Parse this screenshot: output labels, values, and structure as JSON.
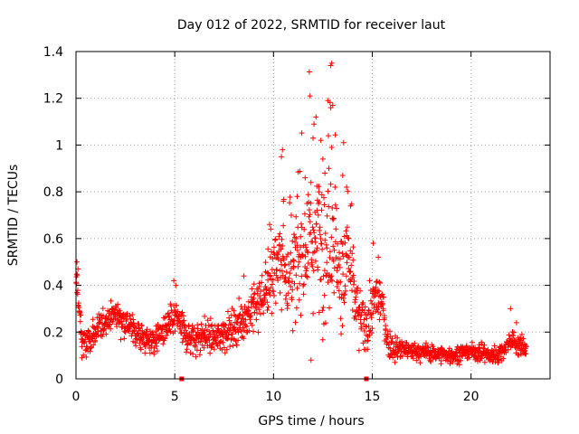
{
  "chart_data": {
    "type": "scatter",
    "title": "Day 012 of 2022, SRMTID for receiver laut",
    "xlabel": "GPS time / hours",
    "ylabel": "SRMTID / TECUs",
    "xlim": [
      0,
      24
    ],
    "ylim": [
      0,
      1.4
    ],
    "xticks": [
      0,
      5,
      10,
      15,
      20
    ],
    "xtick_labels": [
      "0",
      "5",
      "10",
      "15",
      "20"
    ],
    "yticks": [
      0,
      0.2,
      0.4,
      0.6,
      0.8,
      1.0,
      1.2,
      1.4
    ],
    "ytick_labels": [
      "0",
      "0.2",
      "0.4",
      "0.6",
      "0.8",
      "1",
      "1.2",
      "1.4"
    ],
    "grid": true,
    "marker": "+",
    "series": [
      {
        "name": "SRMTID",
        "color": "#ff0000",
        "envelope": {
          "x": [
            0,
            0.05,
            0.15,
            0.3,
            0.5,
            0.8,
            1.2,
            1.6,
            2.0,
            2.4,
            2.8,
            3.2,
            3.6,
            4.0,
            4.5,
            5.0,
            5.3,
            5.5,
            6.0,
            6.5,
            7.0,
            7.5,
            8.0,
            8.5,
            9.0,
            9.5,
            10.0,
            10.3,
            10.6,
            11.0,
            11.4,
            11.8,
            12.2,
            12.6,
            13.0,
            13.4,
            13.8,
            14.2,
            14.6,
            14.9,
            15.2,
            15.5,
            15.8,
            16.2,
            17.0,
            18.0,
            19.0,
            20.0,
            20.5,
            21.0,
            21.5,
            22.0,
            22.5,
            22.8
          ],
          "y": [
            0.38,
            0.42,
            0.3,
            0.17,
            0.14,
            0.18,
            0.22,
            0.26,
            0.28,
            0.25,
            0.22,
            0.19,
            0.16,
            0.17,
            0.21,
            0.26,
            0.24,
            0.19,
            0.17,
            0.19,
            0.17,
            0.2,
            0.22,
            0.26,
            0.3,
            0.36,
            0.46,
            0.52,
            0.46,
            0.44,
            0.52,
            0.62,
            0.58,
            0.5,
            0.66,
            0.42,
            0.52,
            0.3,
            0.22,
            0.26,
            0.36,
            0.32,
            0.15,
            0.13,
            0.12,
            0.11,
            0.1,
            0.12,
            0.11,
            0.1,
            0.11,
            0.17,
            0.14,
            0.13
          ]
        },
        "spread": {
          "x": [
            0,
            0.2,
            0.5,
            2.0,
            5.0,
            8.0,
            9.5,
            10.5,
            11.5,
            12.5,
            13.2,
            14.0,
            14.6,
            15.2,
            15.8,
            17.0,
            20.0,
            22.8
          ],
          "y": [
            0.08,
            0.07,
            0.05,
            0.05,
            0.06,
            0.06,
            0.1,
            0.16,
            0.2,
            0.22,
            0.22,
            0.14,
            0.08,
            0.1,
            0.05,
            0.03,
            0.03,
            0.04
          ]
        },
        "peaks": [
          [
            12.95,
            1.35
          ],
          [
            12.9,
            1.34
          ],
          [
            11.85,
            1.21
          ],
          [
            12.75,
            1.19
          ],
          [
            13.0,
            1.17
          ],
          [
            12.9,
            1.16
          ],
          [
            12.15,
            1.12
          ],
          [
            12.05,
            1.09
          ],
          [
            12.0,
            1.03
          ],
          [
            12.4,
            1.02
          ],
          [
            13.55,
            1.01
          ],
          [
            12.95,
            0.99
          ],
          [
            10.45,
            0.98
          ],
          [
            10.4,
            0.95
          ],
          [
            12.5,
            0.94
          ],
          [
            12.8,
            0.9
          ],
          [
            12.6,
            0.88
          ],
          [
            13.5,
            0.87
          ],
          [
            11.6,
            0.86
          ],
          [
            11.9,
            0.84
          ],
          [
            13.7,
            0.82
          ],
          [
            12.3,
            0.8
          ],
          [
            11.2,
            0.78
          ],
          [
            10.5,
            0.76
          ],
          [
            11.7,
            0.75
          ],
          [
            13.9,
            0.74
          ],
          [
            12.2,
            0.72
          ],
          [
            10.9,
            0.7
          ],
          [
            9.8,
            0.66
          ],
          [
            15.05,
            0.58
          ],
          [
            15.3,
            0.52
          ],
          [
            8.5,
            0.44
          ],
          [
            0.05,
            0.5
          ],
          [
            0.1,
            0.47
          ],
          [
            4.95,
            0.42
          ],
          [
            5.05,
            0.4
          ],
          [
            22.0,
            0.3
          ],
          [
            11.9,
            0.08
          ],
          [
            0.3,
            0.09
          ],
          [
            22.3,
            0.24
          ]
        ],
        "point_count": 1650
      }
    ],
    "axis_markers": [
      5.35,
      14.7
    ]
  }
}
